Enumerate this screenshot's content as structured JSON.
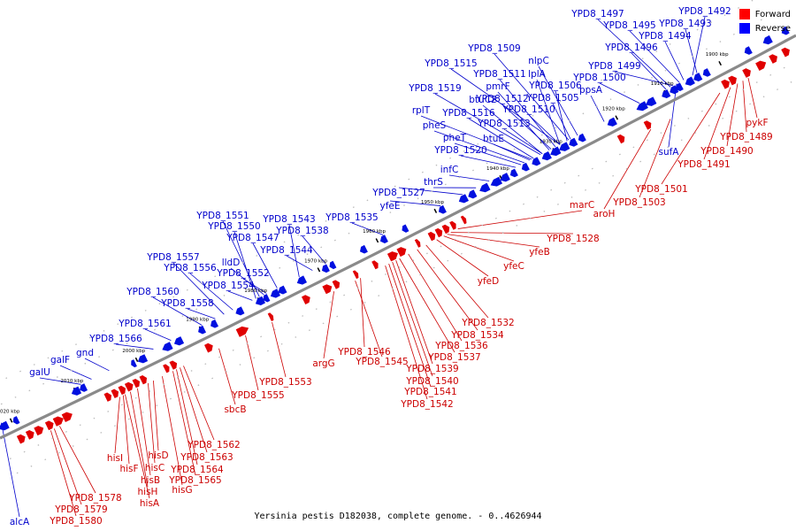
{
  "caption": "Yersinia pestis D182038, complete genome. - 0..4626944",
  "legend": [
    {
      "label": "Forward",
      "color": "#ff0000"
    },
    {
      "label": "Reverse",
      "color": "#0000ff"
    }
  ],
  "colors": {
    "forward": "#e00000",
    "reverse": "#0010e0",
    "backbone": "#8a8a8a"
  },
  "ticks": [
    "1900 kbp",
    "1910 kbp",
    "1920 kbp",
    "1930 kbp",
    "1940 kbp",
    "1950 kbp",
    "1960 kbp",
    "1970 kbp",
    "1980 kbp",
    "1990 kbp",
    "2000 kbp",
    "2010 kbp",
    "2020 kbp"
  ],
  "reverse_genes": [
    "YPD8_1492",
    "YPD8_1493",
    "YPD8_1497",
    "YPD8_1495",
    "YPD8_1494",
    "YPD8_1496",
    "YPD8_1499",
    "YPD8_1500",
    "YPD8_1509",
    "nlpC",
    "YPD8_1515",
    "YPD8_1511",
    "lplA",
    "pmrF",
    "YPD8_1519",
    "YPD8_1506",
    "btuC2",
    "YPD8_1512",
    "YPD8_1505",
    "ppsA",
    "rplT",
    "YPD8_1516",
    "YPD8_1510",
    "pheS",
    "YPD8_1513",
    "pheT",
    "btuE",
    "YPD8_1520",
    "infC",
    "thrS",
    "YPD8_1527",
    "yfeE",
    "YPD8_1551",
    "YPD8_1543",
    "YPD8_1535",
    "YPD8_1550",
    "YPD8_1538",
    "YPD8_1547",
    "YPD8_1544",
    "lldD",
    "YPD8_1557",
    "YPD8_1552",
    "YPD8_1556",
    "YPD8_1554",
    "YPD8_1560",
    "YPD8_1558",
    "YPD8_1561",
    "YPD8_1566",
    "gnd",
    "galF",
    "galU",
    "sufA",
    "alcA"
  ],
  "forward_genes": [
    "pykF",
    "YPD8_1489",
    "YPD8_1490",
    "YPD8_1491",
    "YPD8_1501",
    "YPD8_1503",
    "aroH",
    "marC",
    "YPD8_1528",
    "yfeB",
    "yfeC",
    "yfeD",
    "YPD8_1532",
    "YPD8_1534",
    "YPD8_1536",
    "YPD8_1537",
    "YPD8_1539",
    "YPD8_1540",
    "YPD8_1541",
    "YPD8_1542",
    "YPD8_1546",
    "YPD8_1545",
    "argG",
    "YPD8_1553",
    "YPD8_1555",
    "sbcB",
    "YPD8_1562",
    "YPD8_1563",
    "YPD8_1564",
    "YPD8_1565",
    "hisG",
    "hisD",
    "hisC",
    "hisB",
    "hisH",
    "hisA",
    "hisI",
    "hisF",
    "YPD8_1578",
    "YPD8_1579",
    "YPD8_1580"
  ]
}
